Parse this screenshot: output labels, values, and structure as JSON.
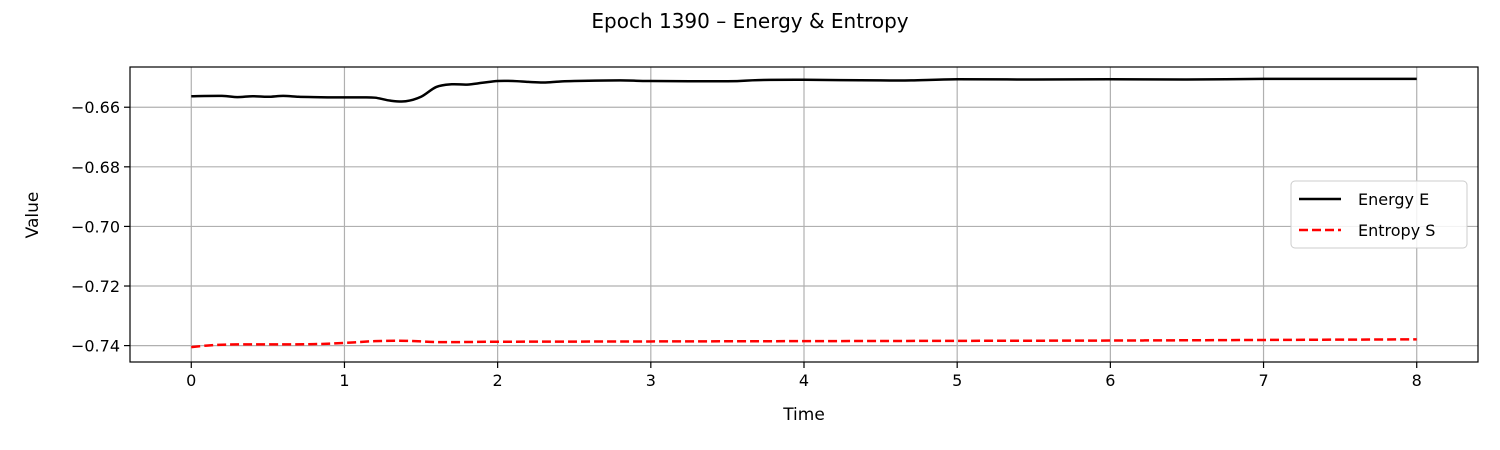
{
  "chart_data": {
    "type": "line",
    "title": "Epoch 1390 – Energy & Entropy",
    "xlabel": "Time",
    "ylabel": "Value",
    "xlim": [
      -0.4,
      8.4
    ],
    "ylim": [
      -0.7455,
      -0.6465
    ],
    "xticks": [
      0,
      1,
      2,
      3,
      4,
      5,
      6,
      7,
      8
    ],
    "xtick_labels": [
      "0",
      "1",
      "2",
      "3",
      "4",
      "5",
      "6",
      "7",
      "8"
    ],
    "yticks": [
      -0.66,
      -0.68,
      -0.7,
      -0.72,
      -0.74
    ],
    "ytick_labels": [
      "−0.66",
      "−0.68",
      "−0.70",
      "−0.72",
      "−0.74"
    ],
    "grid": true,
    "legend_position": "center-right",
    "series": [
      {
        "name": "Energy E",
        "color": "#000000",
        "style": "solid",
        "x": [
          0,
          0.2,
          0.3,
          0.4,
          0.5,
          0.6,
          0.7,
          0.8,
          0.9,
          1.0,
          1.1,
          1.2,
          1.3,
          1.4,
          1.5,
          1.6,
          1.7,
          1.8,
          1.9,
          2.0,
          2.1,
          2.2,
          2.3,
          2.4,
          2.5,
          2.8,
          3.0,
          3.5,
          3.7,
          4.0,
          4.5,
          4.7,
          5.0,
          5.5,
          6.0,
          6.5,
          7.0,
          7.5,
          8.0
        ],
        "y": [
          -0.6563,
          -0.6562,
          -0.6566,
          -0.6563,
          -0.6565,
          -0.6562,
          -0.6565,
          -0.6566,
          -0.6567,
          -0.6567,
          -0.6567,
          -0.6568,
          -0.6578,
          -0.658,
          -0.6565,
          -0.6532,
          -0.6523,
          -0.6524,
          -0.6518,
          -0.6512,
          -0.6512,
          -0.6515,
          -0.6517,
          -0.6514,
          -0.6512,
          -0.651,
          -0.6512,
          -0.6513,
          -0.6509,
          -0.6508,
          -0.651,
          -0.651,
          -0.6506,
          -0.6507,
          -0.6506,
          -0.6507,
          -0.6505,
          -0.6505,
          -0.6505
        ]
      },
      {
        "name": "Entropy S",
        "color": "#ff0000",
        "style": "dashed",
        "x": [
          0,
          0.1,
          0.2,
          0.3,
          0.5,
          0.8,
          1.0,
          1.2,
          1.4,
          1.6,
          1.8,
          2.0,
          3.0,
          4.0,
          5.0,
          6.0,
          7.0,
          8.0
        ],
        "y": [
          -0.7405,
          -0.74,
          -0.7397,
          -0.7396,
          -0.7396,
          -0.7395,
          -0.7391,
          -0.7385,
          -0.7384,
          -0.7388,
          -0.7388,
          -0.7387,
          -0.7386,
          -0.7385,
          -0.7384,
          -0.7383,
          -0.7381,
          -0.7379
        ]
      }
    ]
  }
}
